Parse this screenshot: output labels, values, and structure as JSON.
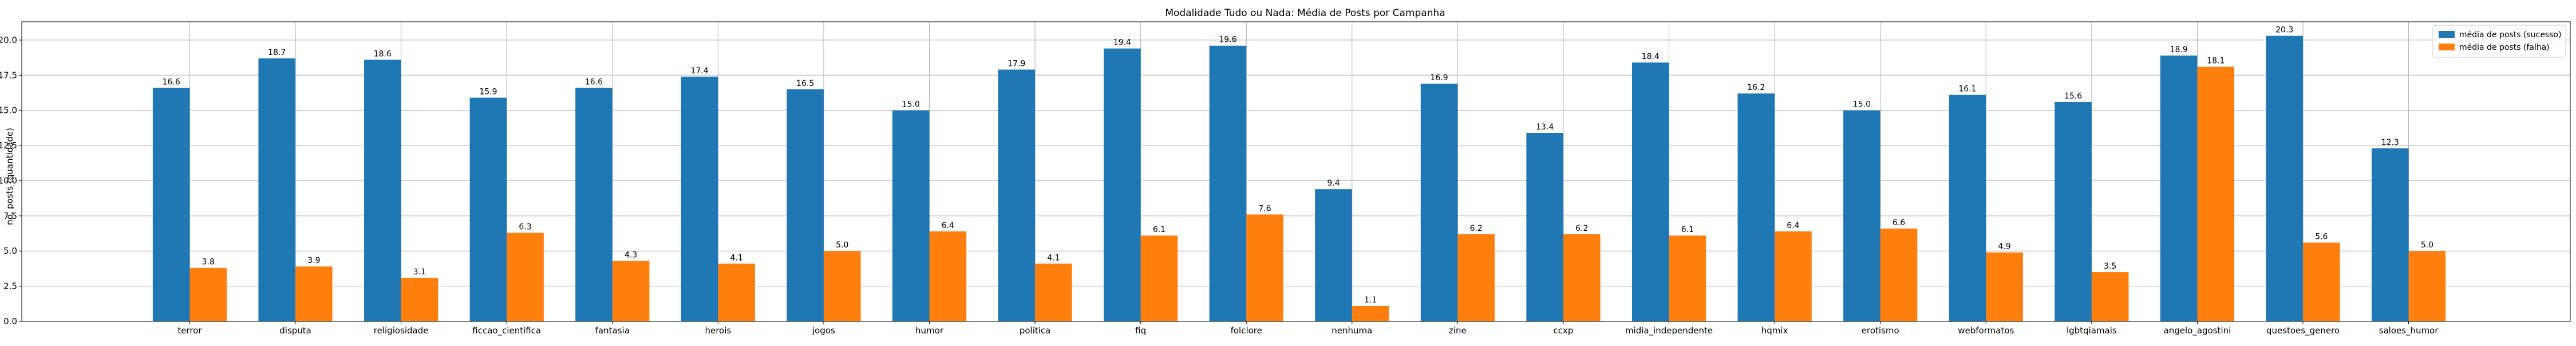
{
  "chart_data": {
    "type": "bar",
    "title": "Modalidade Tudo ou Nada: Média de Posts por Campanha",
    "xlabel": "",
    "ylabel": "no. posts (quantidade)",
    "ylim": [
      0,
      21.3
    ],
    "yticks": [
      "0.0",
      "2.5",
      "5.0",
      "7.5",
      "10.0",
      "12.5",
      "15.0",
      "17.5",
      "20.0"
    ],
    "grid": true,
    "legend_position": "top-right",
    "categories": [
      "terror",
      "disputa",
      "religiosidade",
      "ficcao_cientifica",
      "fantasia",
      "herois",
      "jogos",
      "humor",
      "politica",
      "fiq",
      "folclore",
      "nenhuma",
      "zine",
      "ccxp",
      "midia_independente",
      "hqmix",
      "erotismo",
      "webformatos",
      "lgbtqiamais",
      "angelo_agostini",
      "questoes_genero",
      "saloes_humor"
    ],
    "series": [
      {
        "name": "média de posts (sucesso)",
        "color": "#1f77b4",
        "values": [
          16.6,
          18.7,
          18.6,
          15.9,
          16.6,
          17.4,
          16.5,
          15.0,
          17.9,
          19.4,
          19.6,
          9.4,
          16.9,
          13.4,
          18.4,
          16.2,
          15.0,
          16.1,
          15.6,
          18.9,
          20.3,
          12.3
        ]
      },
      {
        "name": "média de posts (falha)",
        "color": "#ff7f0e",
        "values": [
          3.8,
          3.9,
          3.1,
          6.3,
          4.3,
          4.1,
          5.0,
          6.4,
          4.1,
          6.1,
          7.6,
          1.1,
          6.2,
          6.2,
          6.1,
          6.4,
          6.6,
          4.9,
          3.5,
          18.1,
          5.6,
          5.0
        ]
      }
    ]
  }
}
